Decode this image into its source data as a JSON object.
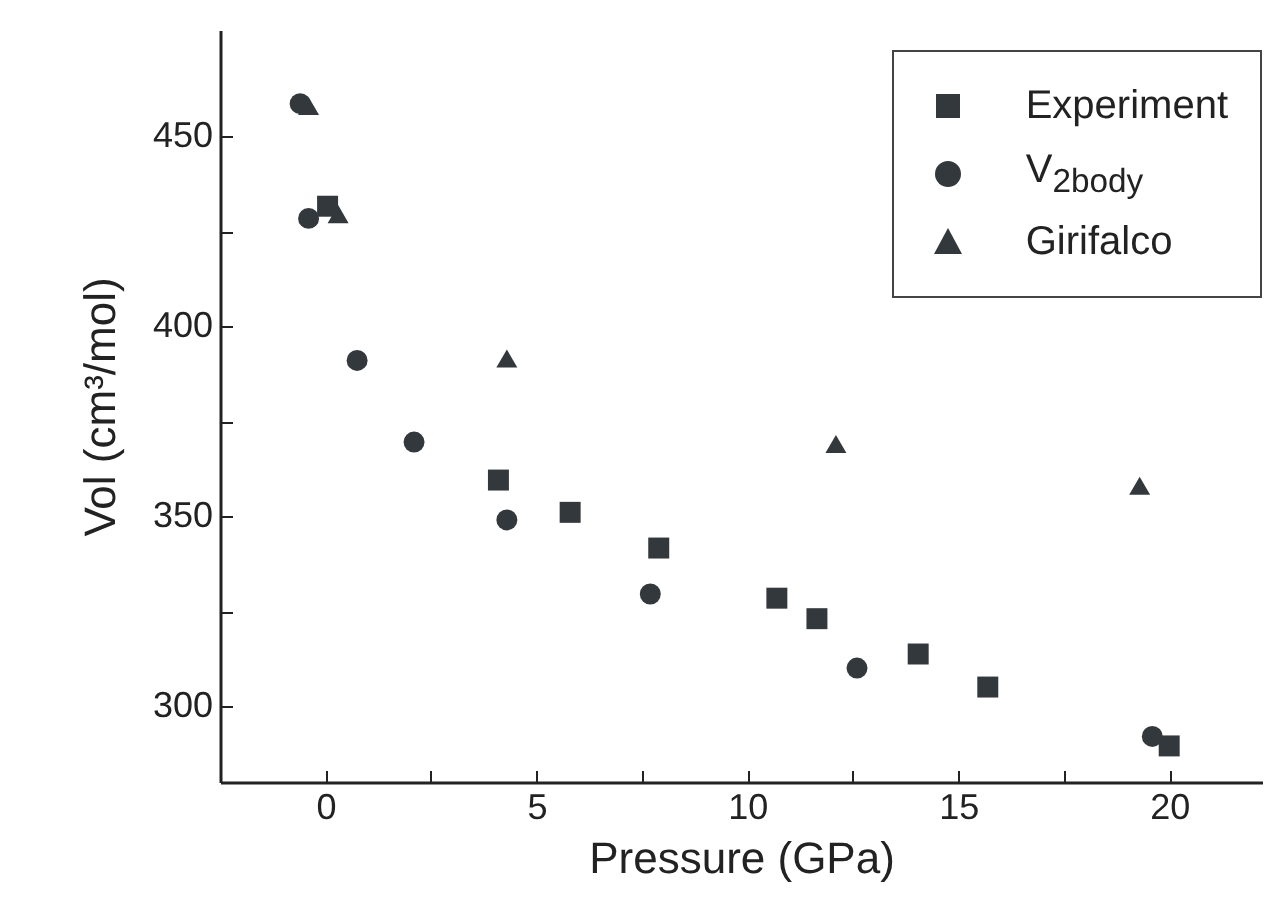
{
  "chart_data": {
    "type": "scatter",
    "xlabel": "Pressure (GPa)",
    "ylabel": "Vol (cm³/mol)",
    "xlim": [
      -2.5,
      22.2
    ],
    "ylim": [
      280,
      478
    ],
    "xticks": [
      0,
      {
        "value": 2.5,
        "label": null
      },
      5,
      {
        "value": 7.5,
        "label": null
      },
      10,
      {
        "value": 12.5,
        "label": null
      },
      15,
      {
        "value": 17.5,
        "label": null
      },
      20
    ],
    "yticks": [
      300,
      {
        "value": 325,
        "label": null
      },
      350,
      {
        "value": 375,
        "label": null
      },
      400,
      {
        "value": 425,
        "label": null
      },
      450
    ],
    "legend": "top right",
    "grid": false,
    "series": [
      {
        "name": "Experiment",
        "color": "#33383d",
        "marker": "square",
        "x": [
          0.05,
          4.1,
          5.8,
          7.9,
          10.7,
          11.65,
          14.05,
          15.7,
          20.0
        ],
        "values": [
          431.6,
          359.5,
          351,
          341.6,
          328.4,
          323,
          313.7,
          305,
          289.5
        ]
      },
      {
        "name": "V$_{2body}$",
        "color": "#33383d",
        "marker": "circle",
        "x": [
          -0.6,
          -0.4,
          0.75,
          2.1,
          4.3,
          7.7,
          12.6,
          19.6
        ],
        "values": [
          458.6,
          428.4,
          391,
          369.5,
          349,
          329.5,
          310,
          292
        ]
      },
      {
        "name": "Girifalco",
        "color": "#33383d",
        "marker": "triangle",
        "x": [
          -0.4,
          0.3,
          4.3,
          12.1,
          19.3
        ],
        "values": [
          458,
          429.5,
          391.5,
          369,
          358
        ]
      }
    ]
  }
}
